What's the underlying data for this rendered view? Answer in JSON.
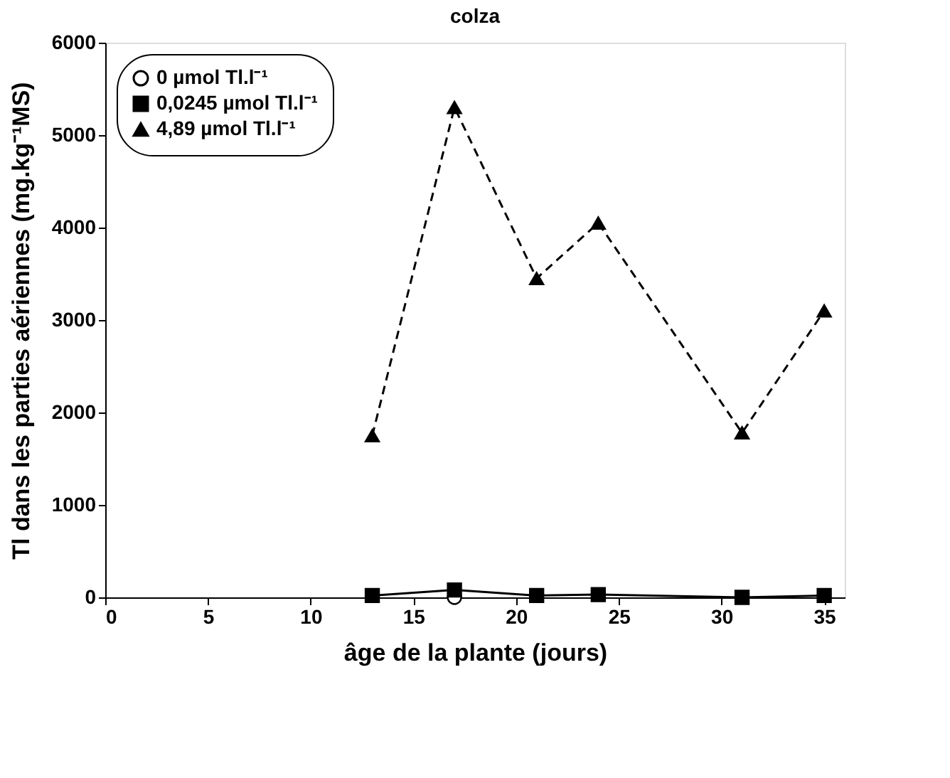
{
  "chart_data": {
    "type": "line",
    "title": "colza",
    "xlabel": "âge de la plante (jours)",
    "ylabel": "Tl dans les parties aériennes (mg.kg⁻¹MS)",
    "x": [
      13,
      17,
      21,
      24,
      31,
      35
    ],
    "series": [
      {
        "name": "0 µmol Tl.l⁻¹",
        "color": "#000000",
        "values": [
          null,
          0,
          null,
          null,
          null,
          null
        ],
        "marker": "circle",
        "line_style": "dotted"
      },
      {
        "name": "0,0245 µmol Tl.l⁻¹",
        "color": "#000000",
        "values": [
          20,
          80,
          20,
          30,
          0,
          20
        ],
        "marker": "square",
        "line_style": "solid"
      },
      {
        "name": "4,89 µmol Tl.l⁻¹",
        "color": "#000000",
        "values": [
          1750,
          5300,
          3450,
          4050,
          1780,
          3100
        ],
        "marker": "triangle",
        "line_style": "dashed"
      }
    ],
    "xlim": [
      0,
      36
    ],
    "xticks": [
      0,
      5,
      10,
      15,
      20,
      25,
      30,
      35
    ],
    "ylim": [
      0,
      6000
    ],
    "yticks": [
      0,
      1000,
      2000,
      3000,
      4000,
      5000,
      6000
    ],
    "grid": false,
    "legend": "top left"
  }
}
